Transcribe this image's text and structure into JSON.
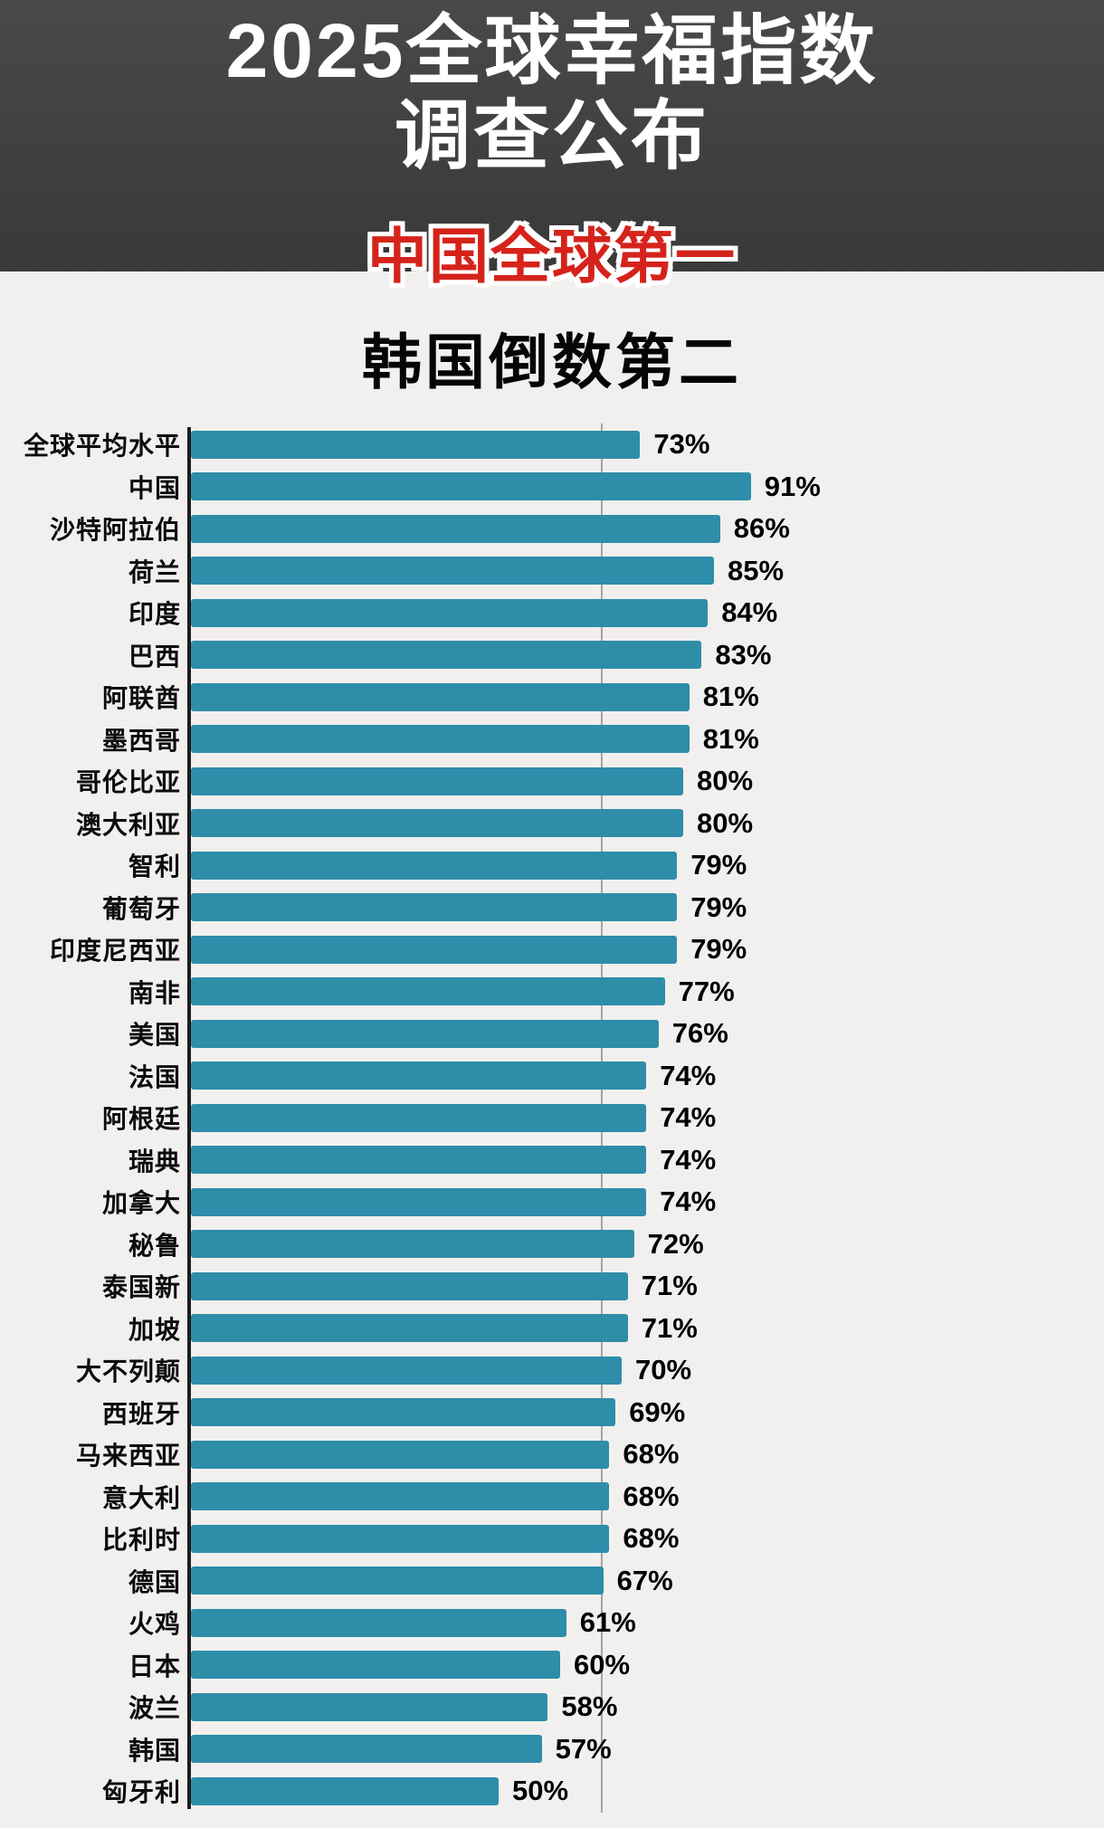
{
  "header": {
    "title_line1": "2025全球幸福指数",
    "title_line2": "调查公布",
    "highlight": "中国全球第一",
    "subtitle": "韩国倒数第二"
  },
  "colors": {
    "header_bg": "#3e3d3d",
    "page_bg": "#f2f0ee",
    "bar": "#2e8da9",
    "highlight_red": "#d5231b",
    "axis": "#1c1c1c"
  },
  "chart_data": {
    "type": "bar",
    "orientation": "horizontal",
    "title": "2025全球幸福指数调查公布",
    "value_suffix": "%",
    "xlim": [
      0,
      100
    ],
    "reference_line": 67,
    "legend": "none",
    "categories": [
      "全球平均水平",
      "中国",
      "沙特阿拉伯",
      "荷兰",
      "印度",
      "巴西",
      "阿联酋",
      "墨西哥",
      "哥伦比亚",
      "澳大利亚",
      "智利",
      "葡萄牙",
      "印度尼西亚",
      "南非",
      "美国",
      "法国",
      "阿根廷",
      "瑞典",
      "加拿大",
      "秘鲁",
      "泰国新",
      "加坡",
      "大不列颠",
      "西班牙",
      "马来西亚",
      "意大利",
      "比利时",
      "德国",
      "火鸡",
      "日本",
      "波兰",
      "韩国",
      "匈牙利"
    ],
    "values": [
      73,
      91,
      86,
      85,
      84,
      83,
      81,
      81,
      80,
      80,
      79,
      79,
      79,
      77,
      76,
      74,
      74,
      74,
      74,
      72,
      71,
      71,
      70,
      69,
      68,
      68,
      68,
      67,
      61,
      60,
      58,
      57,
      50
    ]
  }
}
